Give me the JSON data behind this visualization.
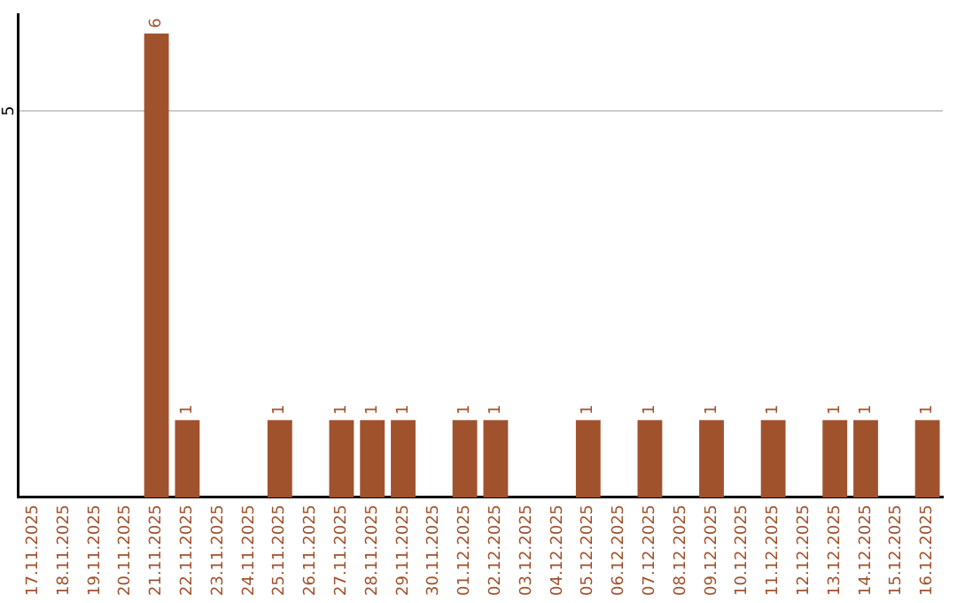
{
  "chart_data": {
    "type": "bar",
    "categories": [
      "17.11.2025",
      "18.11.2025",
      "19.11.2025",
      "20.11.2025",
      "21.11.2025",
      "22.11.2025",
      "23.11.2025",
      "24.11.2025",
      "25.11.2025",
      "26.11.2025",
      "27.11.2025",
      "28.11.2025",
      "29.11.2025",
      "30.11.2025",
      "01.12.2025",
      "02.12.2025",
      "03.12.2025",
      "04.12.2025",
      "05.12.2025",
      "06.12.2025",
      "07.12.2025",
      "08.12.2025",
      "09.12.2025",
      "10.12.2025",
      "11.12.2025",
      "12.12.2025",
      "13.12.2025",
      "14.12.2025",
      "15.12.2025",
      "16.12.2025"
    ],
    "values": [
      0,
      0,
      0,
      0,
      6,
      1,
      0,
      0,
      1,
      0,
      1,
      1,
      1,
      0,
      1,
      1,
      0,
      0,
      1,
      0,
      1,
      0,
      1,
      0,
      1,
      0,
      1,
      1,
      0,
      1
    ],
    "value_labels": [
      null,
      null,
      null,
      null,
      "6",
      "1",
      null,
      null,
      "1",
      null,
      "1",
      "1",
      "1",
      null,
      "1",
      "1",
      null,
      null,
      "1",
      null,
      "1",
      null,
      "1",
      null,
      "1",
      null,
      "1",
      "1",
      null,
      "1"
    ],
    "color": "#a0522d",
    "ylim": [
      0,
      6.25
    ],
    "yticks": [
      5
    ],
    "grid": "y",
    "legend": false
  }
}
